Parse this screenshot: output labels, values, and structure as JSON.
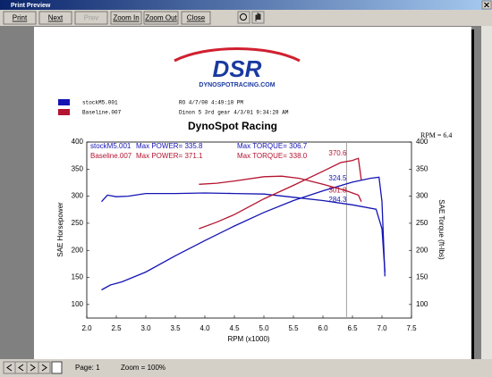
{
  "window": {
    "title": "Print Preview"
  },
  "toolbar": {
    "buttons": [
      "Print",
      "Next",
      "Prev",
      "Zoom In",
      "Zoom Out",
      "Close"
    ]
  },
  "report": {
    "logo": "DSR",
    "logo_sub": "DYNOSPOTRACING.COM",
    "runs": [
      {
        "name": "stockM5.001",
        "info": "RO      4/7/00  4:49:10 PM",
        "color": "#1414b4"
      },
      {
        "name": "Baseline.007",
        "info": "Dinon 5 3rd gear 4/3/01 9:34:28 AM",
        "color": "#b41430"
      }
    ]
  },
  "chart_data": {
    "type": "line",
    "title": "DynoSpot Racing",
    "x_label": "RPM (x1000)",
    "y_label": "SAE Horsepower",
    "y2_label": "SAE Torque (ft-lbs)",
    "xlim": [
      2,
      7.5
    ],
    "xticks": [
      {
        "value": 2,
        "label": "2.0"
      },
      {
        "value": 2.5,
        "label": "2.5"
      },
      {
        "value": 3,
        "label": "3.0"
      },
      {
        "value": 3.5,
        "label": "3.5"
      },
      {
        "value": 4,
        "label": "4.0"
      },
      {
        "value": 4.5,
        "label": "4.5"
      },
      {
        "value": 5,
        "label": "5.0"
      },
      {
        "value": 5.5,
        "label": "5.5"
      },
      {
        "value": 6,
        "label": "6.0"
      },
      {
        "value": 6.5,
        "label": "6.5"
      },
      {
        "value": 7,
        "label": "7.0"
      },
      {
        "value": 7.5,
        "label": "7.5"
      }
    ],
    "ylim": [
      75,
      400
    ],
    "yticks": [
      100,
      150,
      200,
      250,
      300,
      350,
      400
    ],
    "y2lim": [
      75,
      400
    ],
    "y2ticks": [
      100,
      150,
      200,
      250,
      300,
      350,
      400
    ],
    "cursor": {
      "value": 6.4,
      "label": "RPM = 6.4"
    },
    "cursor_readings": [
      370.6,
      324.5,
      301.8,
      284.3
    ],
    "series": [
      {
        "name": "stockM5.001",
        "color": "#1414b4",
        "max_power": "Max POWER= 335.8",
        "max_torque": "Max TORQUE= 306.7",
        "power": {
          "x": [
            2.25,
            2.4,
            2.6,
            3.0,
            3.5,
            4.0,
            4.5,
            5.0,
            5.5,
            6.0,
            6.5,
            6.8,
            6.95,
            7.0,
            7.05
          ],
          "values": [
            127,
            136,
            142,
            160,
            190,
            218,
            245,
            270,
            292,
            310,
            326,
            333,
            335,
            290,
            152
          ]
        },
        "torque": {
          "x": [
            2.25,
            2.35,
            2.5,
            2.7,
            3.0,
            3.5,
            4.0,
            4.5,
            5.0,
            5.5,
            6.0,
            6.5,
            6.9,
            7.0,
            7.05
          ],
          "values": [
            290,
            302,
            299,
            300,
            305,
            305,
            306,
            305,
            304,
            298,
            292,
            284,
            276,
            240,
            160
          ]
        }
      },
      {
        "name": "Baseline.007",
        "color": "#b41430",
        "max_power": "Max POWER= 371.1",
        "max_torque": "Max TORQUE= 338.0",
        "power": {
          "x": [
            3.9,
            4.2,
            4.5,
            5.0,
            5.5,
            6.0,
            6.3,
            6.5,
            6.6,
            6.65
          ],
          "values": [
            240,
            252,
            266,
            295,
            320,
            346,
            362,
            366,
            370,
            330
          ]
        },
        "torque": {
          "x": [
            3.9,
            4.2,
            4.5,
            5.0,
            5.3,
            5.6,
            6.0,
            6.4,
            6.6,
            6.65
          ],
          "values": [
            322,
            324,
            328,
            336,
            337,
            333,
            322,
            310,
            302,
            290
          ]
        }
      }
    ]
  },
  "status": {
    "page": "Page: 1",
    "zoom": "Zoom = 100%"
  }
}
